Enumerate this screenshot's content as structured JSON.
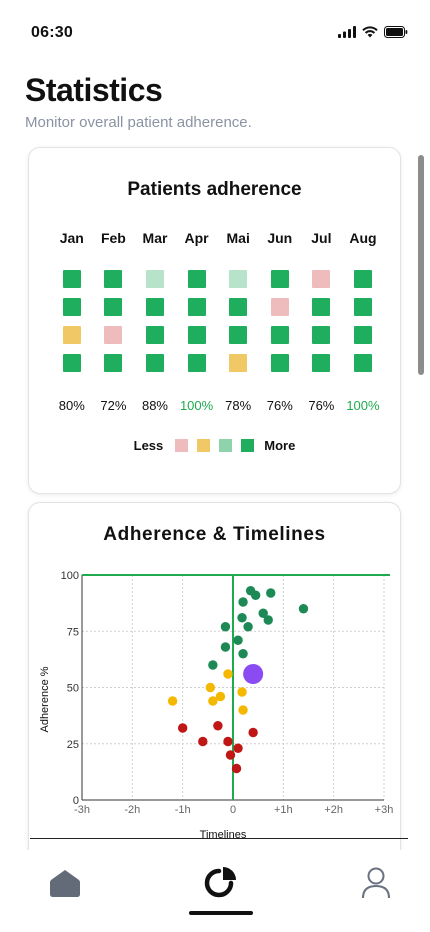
{
  "status_bar": {
    "time": "06:30"
  },
  "header": {
    "title": "Statistics",
    "subtitle": "Monitor overall patient adherence."
  },
  "adherence_card": {
    "title": "Patients adherence",
    "months": [
      "Jan",
      "Feb",
      "Mar",
      "Apr",
      "Mai",
      "Jun",
      "Jul",
      "Aug"
    ],
    "percentages": [
      "80%",
      "72%",
      "88%",
      "100%",
      "78%",
      "76%",
      "76%",
      "100%"
    ],
    "highlight": [
      false,
      false,
      false,
      true,
      false,
      false,
      false,
      true
    ],
    "levels": [
      [
        4,
        4,
        2,
        4
      ],
      [
        4,
        4,
        1,
        4
      ],
      [
        3,
        4,
        4,
        4
      ],
      [
        4,
        4,
        4,
        4
      ],
      [
        3,
        4,
        4,
        2
      ],
      [
        4,
        1,
        4,
        4
      ],
      [
        1,
        4,
        4,
        4
      ],
      [
        4,
        4,
        4,
        4
      ]
    ],
    "legend": {
      "less": "Less",
      "more": "More"
    },
    "colors": {
      "1": "#efbcbe",
      "2": "#f0c866",
      "3": "#b8e3cb",
      "4": "#1fae5e",
      "highlight_text": "#1faa4f"
    }
  },
  "timeline_card": {
    "title": "Adherence & Timelines"
  },
  "chart_data": {
    "type": "scatter",
    "title": "Adherence & Timelines",
    "xlabel": "Timelines",
    "ylabel": "Adherence %",
    "xlim": [
      -3,
      3
    ],
    "ylim": [
      0,
      100
    ],
    "x_ticks": [
      "-3h",
      "-2h",
      "-1h",
      "0",
      "+1h",
      "+2h",
      "+3h"
    ],
    "y_ticks": [
      "0",
      "25",
      "50",
      "75",
      "100"
    ],
    "grid": true,
    "series": [
      {
        "color": "#1d8a56",
        "points": [
          [
            0.35,
            93
          ],
          [
            0.45,
            91
          ],
          [
            0.75,
            92
          ],
          [
            1.4,
            85
          ],
          [
            0.2,
            88
          ],
          [
            0.6,
            83
          ],
          [
            0.7,
            80
          ],
          [
            0.18,
            81
          ],
          [
            -0.15,
            77
          ],
          [
            0.3,
            77
          ],
          [
            0.1,
            71
          ],
          [
            -0.15,
            68
          ],
          [
            0.2,
            65
          ],
          [
            -0.4,
            60
          ]
        ]
      },
      {
        "color": "#f5b800",
        "points": [
          [
            -0.1,
            56
          ],
          [
            -0.45,
            50
          ],
          [
            0.18,
            48
          ],
          [
            -0.25,
            46
          ],
          [
            -1.2,
            44
          ],
          [
            -0.4,
            44
          ],
          [
            0.2,
            40
          ]
        ]
      },
      {
        "color": "#c01616",
        "points": [
          [
            -1.0,
            32
          ],
          [
            -0.3,
            33
          ],
          [
            0.4,
            30
          ],
          [
            -0.6,
            26
          ],
          [
            -0.1,
            26
          ],
          [
            0.1,
            23
          ],
          [
            -0.05,
            20
          ],
          [
            0.07,
            14
          ]
        ]
      },
      {
        "color": "#8a4cf2",
        "points": [
          [
            0.4,
            56
          ]
        ],
        "size": "large"
      }
    ],
    "vertical_marker_x": 0,
    "horizontal_marker_y": 100,
    "marker_color": "#1faa4f"
  },
  "nav": {
    "items": [
      "home-icon",
      "stats-icon",
      "profile-icon"
    ],
    "active": 1
  }
}
